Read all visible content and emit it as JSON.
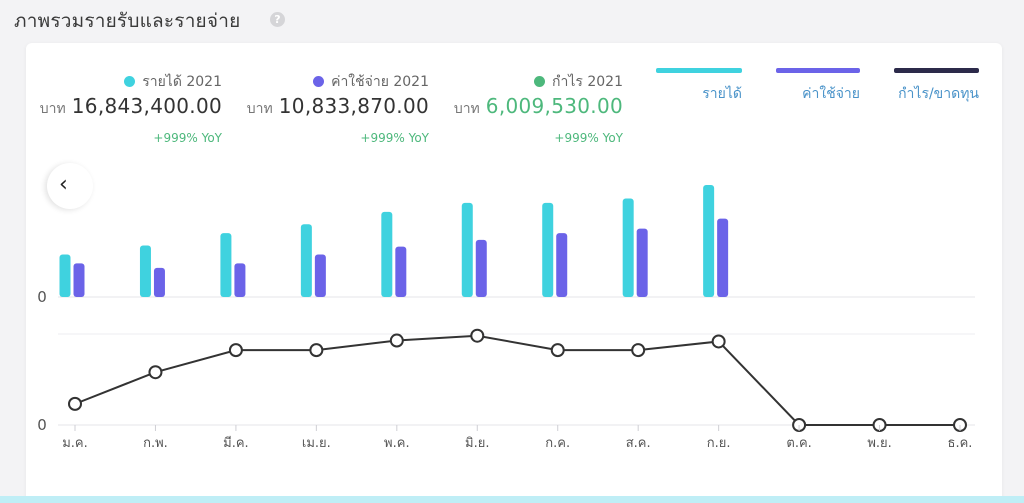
{
  "header": {
    "title": "ภาพรวมรายรับและรายจ่าย",
    "help_symbol": "?"
  },
  "summary": [
    {
      "key": "revenue",
      "legend": "รายได้ 2021",
      "currency": "บาท",
      "amount": "16,843,400.00",
      "yoy": "+999% YoY",
      "color": "#3fd2df"
    },
    {
      "key": "expense",
      "legend": "ค่าใช้จ่าย 2021",
      "currency": "บาท",
      "amount": "10,833,870.00",
      "yoy": "+999% YoY",
      "color": "#6b63e8"
    },
    {
      "key": "profit",
      "legend": "กำไร 2021",
      "currency": "บาท",
      "amount": "6,009,530.00",
      "yoy": "+999% YoY",
      "color": "#4db87c"
    }
  ],
  "toggles": [
    {
      "label": "รายได้",
      "color": "#3fd2df"
    },
    {
      "label": "ค่าใช้จ่าย",
      "color": "#6b63e8"
    },
    {
      "label": "กำไร/ขาดทุน",
      "color": "#2c2a4a"
    }
  ],
  "chart_data": [
    {
      "type": "bar",
      "categories": [
        "ม.ค.",
        "ก.พ.",
        "มี.ค.",
        "เม.ย.",
        "พ.ค.",
        "มิ.ย.",
        "ก.ค.",
        "ส.ค.",
        "ก.ย.",
        "ต.ค.",
        "พ.ย.",
        "ธ.ค."
      ],
      "series": [
        {
          "name": "รายได้",
          "color": "#3fd2df",
          "values": [
            0.38,
            0.46,
            0.57,
            0.65,
            0.76,
            0.84,
            0.84,
            0.88,
            1.0,
            0,
            0,
            0
          ]
        },
        {
          "name": "ค่าใช้จ่าย",
          "color": "#6b63e8",
          "values": [
            0.3,
            0.26,
            0.3,
            0.38,
            0.45,
            0.51,
            0.57,
            0.61,
            0.7,
            0,
            0,
            0
          ]
        }
      ],
      "zero_label": "0"
    },
    {
      "type": "line",
      "categories": [
        "ม.ค.",
        "ก.พ.",
        "มี.ค.",
        "เม.ย.",
        "พ.ค.",
        "มิ.ย.",
        "ก.ค.",
        "ส.ค.",
        "ก.ย.",
        "ต.ค.",
        "พ.ย.",
        "ธ.ค."
      ],
      "series": [
        {
          "name": "กำไร/ขาดทุน",
          "color": "#333333",
          "values": [
            0.22,
            0.55,
            0.78,
            0.78,
            0.88,
            0.93,
            0.78,
            0.78,
            0.87,
            0,
            0,
            0
          ]
        }
      ],
      "zero_label": "0"
    }
  ]
}
